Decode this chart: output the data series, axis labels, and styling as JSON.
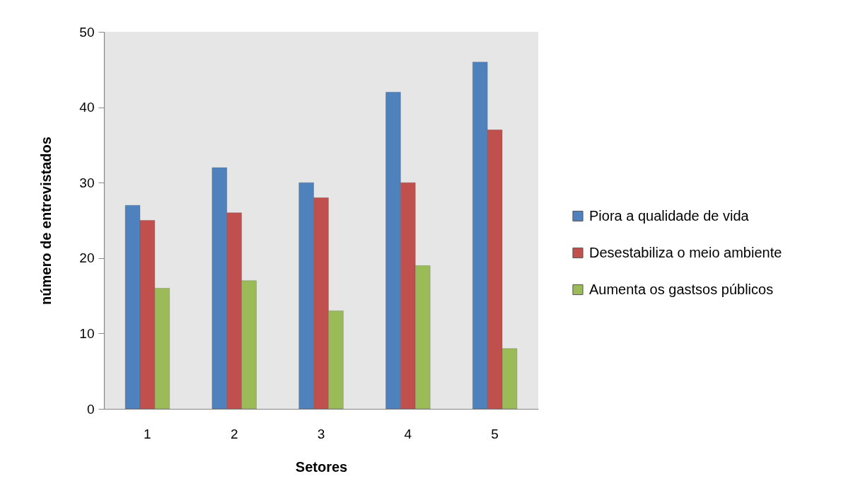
{
  "chart_data": {
    "type": "bar",
    "xlabel": "Setores",
    "ylabel": "número de entrevistados",
    "categories": [
      "1",
      "2",
      "3",
      "4",
      "5"
    ],
    "series": [
      {
        "name": "Piora a qualidade de vida",
        "color": "#4f81bd",
        "values": [
          27,
          32,
          30,
          42,
          46
        ]
      },
      {
        "name": "Desestabiliza o meio ambiente",
        "color": "#c0504d",
        "values": [
          25,
          26,
          28,
          30,
          37
        ]
      },
      {
        "name": "Aumenta os gastsos públicos",
        "color": "#9bbb59",
        "values": [
          16,
          17,
          13,
          19,
          8
        ]
      }
    ],
    "ylim": [
      0,
      50
    ],
    "yticks": [
      0,
      10,
      20,
      30,
      40,
      50
    ],
    "legend": "right"
  }
}
